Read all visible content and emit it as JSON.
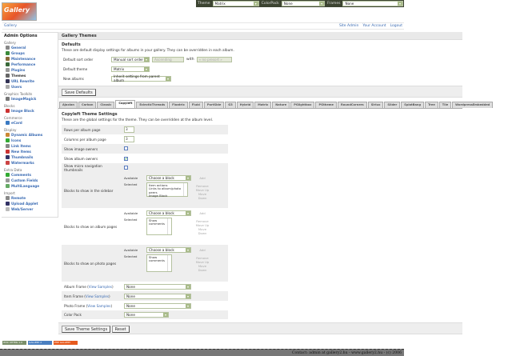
{
  "topbar": {
    "theme_label": "Theme",
    "theme_value": "Matrix",
    "colorpack_label": "ColorPack",
    "colorpack_value": "None",
    "frames_label": "Frames",
    "frames_value": "None"
  },
  "logo_text": "Gallery",
  "breadcrumb": {
    "home": "Gallery",
    "links": [
      "Site Admin",
      "Your Account",
      "Logout"
    ]
  },
  "sidebar": {
    "title": "Admin Options",
    "groups": [
      {
        "label": "Gallery",
        "items": [
          {
            "label": "General",
            "color": "#888"
          },
          {
            "label": "Groups",
            "color": "#3a8a3a"
          },
          {
            "label": "Maintenance",
            "color": "#8a6a3a"
          },
          {
            "label": "Performance",
            "color": "#3a6a3a"
          },
          {
            "label": "Plugins",
            "color": "#999"
          },
          {
            "label": "Themes",
            "color": "#666",
            "current": true
          },
          {
            "label": "URL Rewrite",
            "color": "#335"
          },
          {
            "label": "Users",
            "color": "#aaa"
          }
        ]
      },
      {
        "label": "Graphics Toolkits",
        "items": [
          {
            "label": "ImageMagick",
            "color": "#777"
          }
        ]
      },
      {
        "label": "Blocks",
        "items": [
          {
            "label": "Image Block",
            "color": "#c33"
          }
        ]
      },
      {
        "label": "Commerce",
        "items": [
          {
            "label": "eCard",
            "color": "#3a7ac3"
          }
        ]
      },
      {
        "label": "Display",
        "items": [
          {
            "label": "Dynamic Albums",
            "color": "#c83"
          },
          {
            "label": "Icons",
            "color": "#3a3"
          },
          {
            "label": "Link Items",
            "color": "#888"
          },
          {
            "label": "New Items",
            "color": "#c33"
          },
          {
            "label": "Thumbnails",
            "color": "#336"
          },
          {
            "label": "Watermarks",
            "color": "#c44"
          }
        ]
      },
      {
        "label": "Extra Data",
        "items": [
          {
            "label": "Comments",
            "color": "#3a3"
          },
          {
            "label": "Custom Fields",
            "color": "#999"
          },
          {
            "label": "MultiLanguage",
            "color": "#6a6"
          }
        ]
      },
      {
        "label": "Import",
        "items": [
          {
            "label": "Remote",
            "color": "#888"
          },
          {
            "label": "Upload Applet",
            "color": "#336"
          },
          {
            "label": "Web/Server",
            "color": "#bbb"
          }
        ]
      }
    ]
  },
  "main": {
    "title": "Gallery Themes",
    "defaults": {
      "heading": "Defaults",
      "description": "These are default display settings for albums in your gallery. They can be overridden in each album.",
      "sort_label": "Default sort order",
      "sort_value": "Manual sort order",
      "sort_dir": "Ascending",
      "with_label": "with",
      "presort": "« no presort »",
      "theme_label": "Default theme",
      "theme_value": "Matrix",
      "new_label": "New albums",
      "new_value": "Inherit settings from parent album",
      "save": "Save Defaults"
    },
    "tabs": [
      "Ajaxian",
      "Carbon",
      "Classic",
      "Copyleft",
      "EclecticThreads",
      "Floatrix",
      "Fluid",
      "PortSide",
      "G3",
      "Hybrid",
      "Matrix",
      "Nature",
      "PGlightbox",
      "PGtheme",
      "RoundCorners",
      "Siriux",
      "Slider",
      "SplatBang",
      "Tree",
      "Tile",
      "WordpressEmbedded"
    ],
    "active_tab": "Copyleft",
    "settings": {
      "heading": "Copyleft Theme Settings",
      "description": "These are the global settings for the theme. They can be overridden at the album level.",
      "rows_label": "Rows per album page",
      "rows_value": "3",
      "cols_label": "Columns per album page",
      "cols_value": "3",
      "image_owners_label": "Show image owners",
      "image_owners": false,
      "album_owners_label": "Show album owners",
      "album_owners": true,
      "micro_label": "Show micro navigation thumbnails",
      "micro": false,
      "available_label": "Available",
      "selected_label": "Selected",
      "choose": "Choose a block",
      "add": "Add",
      "remove": "Remove",
      "up": "Move Up",
      "down": "Move Down",
      "sidebar_blocks_label": "Blocks to show in the sidebar",
      "sidebar_blocks": "Item actions\nLinks to album/photo peers\nImage Block",
      "album_blocks_label": "Blocks to show on album pages",
      "album_blocks": "Show comments",
      "photo_blocks_label": "Blocks to show on photo pages",
      "photo_blocks": "Show comments",
      "album_frame_label": "Album Frame",
      "item_frame_label": "Item Frame",
      "photo_frame_label": "Photo Frame",
      "view_samples": "View Samples",
      "album_frame": "None",
      "item_frame": "None",
      "photo_frame": "None",
      "color_pack_label": "Color Pack",
      "color_pack": "None",
      "save": "Save Theme Settings",
      "reset": "Reset"
    }
  },
  "badges": [
    "W3C XHTML 1.0",
    "GALLERY 2",
    "PHP GALLERY"
  ],
  "footer": "Contact: admin at gallery2.hu - www.gallery2.hu - (c) 2006"
}
